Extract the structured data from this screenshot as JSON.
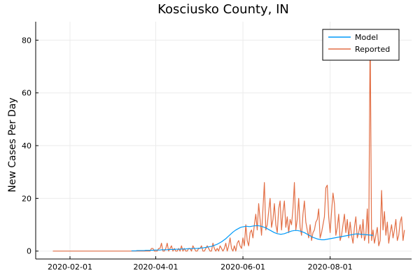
{
  "chart_data": {
    "type": "line",
    "title": "Kosciusko County, IN",
    "xlabel": "",
    "ylabel": "New Cases Per Day",
    "x_start": "2020-01-20",
    "xlim": [
      "2020-01-08",
      "2020-09-27"
    ],
    "ylim": [
      -3,
      87
    ],
    "grid": true,
    "legend_position": "top-right",
    "x_ticks": [
      {
        "date": "2020-02-01",
        "label": "2020-02-01"
      },
      {
        "date": "2020-04-01",
        "label": "2020-04-01"
      },
      {
        "date": "2020-06-01",
        "label": "2020-06-01"
      },
      {
        "date": "2020-08-01",
        "label": "2020-08-01"
      }
    ],
    "y_ticks": [
      0,
      20,
      40,
      60,
      80
    ],
    "series": [
      {
        "name": "Model",
        "color": "#009af9",
        "start_date": "2020-03-15",
        "values": [
          0.1,
          0.1,
          0.1,
          0.1,
          0.2,
          0.2,
          0.2,
          0.2,
          0.2,
          0.2,
          0.3,
          0.3,
          0.3,
          0.3,
          0.3,
          0.3,
          0.4,
          0.4,
          0.4,
          0.4,
          0.4,
          0.5,
          0.5,
          0.5,
          0.5,
          0.5,
          0.6,
          0.6,
          0.6,
          0.6,
          0.6,
          0.7,
          0.7,
          0.7,
          0.7,
          0.8,
          0.8,
          0.8,
          0.8,
          0.9,
          0.9,
          0.9,
          0.9,
          1,
          1,
          1,
          1,
          1.1,
          1.1,
          1.2,
          1.2,
          1.3,
          1.4,
          1.5,
          1.6,
          1.7,
          1.8,
          2.0,
          2.2,
          2.4,
          2.6,
          2.9,
          3.2,
          3.5,
          3.9,
          4.3,
          4.7,
          5.2,
          5.7,
          6.2,
          6.7,
          7.2,
          7.6,
          8.0,
          8.3,
          8.6,
          8.9,
          9.1,
          9.2,
          9.3,
          9.4,
          9.4,
          9.3,
          9.3,
          9.4,
          9.5,
          9.6,
          9.6,
          9.7,
          9.6,
          9.5,
          9.4,
          9.2,
          9.0,
          8.8,
          8.5,
          8.2,
          7.9,
          7.6,
          7.3,
          7.0,
          6.8,
          6.6,
          6.5,
          6.4,
          6.4,
          6.5,
          6.6,
          6.8,
          7.0,
          7.2,
          7.4,
          7.6,
          7.7,
          7.8,
          7.8,
          7.8,
          7.7,
          7.6,
          7.4,
          7.2,
          7.0,
          6.7,
          6.4,
          6.1,
          5.8,
          5.5,
          5.2,
          5.0,
          4.8,
          4.6,
          4.5,
          4.4,
          4.3,
          4.3,
          4.3,
          4.4,
          4.5,
          4.6,
          4.7,
          4.8,
          4.9,
          5.0,
          5.1,
          5.2,
          5.3,
          5.4,
          5.5,
          5.6,
          5.7,
          5.8,
          5.9,
          6.0,
          6.1,
          6.2,
          6.3,
          6.4,
          6.5,
          6.5,
          6.5,
          6.4,
          6.4,
          6.3,
          6.3,
          6.2,
          6.2,
          6.1,
          6.1,
          6.0,
          6.0
        ]
      },
      {
        "name": "Reported",
        "color": "#e26f46",
        "start_date": "2020-01-20",
        "values": [
          0,
          0,
          0,
          0,
          0,
          0,
          0,
          0,
          0,
          0,
          0,
          0,
          0,
          0,
          0,
          0,
          0,
          0,
          0,
          0,
          0,
          0,
          0,
          0,
          0,
          0,
          0,
          0,
          0,
          0,
          0,
          0,
          0,
          0,
          0,
          0,
          0,
          0,
          0,
          0,
          0,
          0,
          0,
          0,
          0,
          0,
          0,
          0,
          0,
          0,
          0,
          0,
          0,
          0,
          0,
          0,
          0,
          0,
          0,
          0,
          0,
          0,
          0,
          0,
          0,
          0,
          0,
          0,
          0,
          1,
          1,
          0,
          0,
          0,
          1,
          1,
          3,
          0,
          0,
          1,
          3,
          0,
          1,
          2,
          0,
          1,
          0,
          0,
          1,
          0,
          2,
          0,
          1,
          0,
          0,
          1,
          1,
          0,
          2,
          1,
          0,
          0,
          1,
          1,
          2,
          0,
          0,
          1,
          2,
          1,
          0,
          0,
          3,
          1,
          0,
          1,
          0,
          2,
          1,
          0,
          1,
          3,
          0,
          2,
          5,
          1,
          0,
          2,
          0,
          3,
          4,
          2,
          1,
          5,
          2,
          10,
          4,
          2,
          7,
          8,
          5,
          10,
          14,
          8,
          18,
          12,
          6,
          16,
          26,
          8,
          10,
          15,
          20,
          9,
          12,
          18,
          10,
          7,
          16,
          19,
          8,
          15,
          19,
          9,
          13,
          7,
          12,
          10,
          16,
          26,
          8,
          12,
          20,
          9,
          6,
          14,
          19,
          11,
          8,
          5,
          10,
          4,
          7,
          8,
          11,
          12,
          16,
          5,
          7,
          10,
          13,
          24,
          25,
          13,
          7,
          15,
          22,
          18,
          6,
          9,
          14,
          4,
          6,
          10,
          14,
          7,
          12,
          5,
          11,
          6,
          3,
          9,
          13,
          5,
          7,
          10,
          5,
          12,
          4,
          6,
          16,
          3,
          84,
          4,
          8,
          3,
          6,
          9,
          2,
          4,
          23,
          8,
          15,
          6,
          11,
          3,
          7,
          10,
          5,
          8,
          12,
          4,
          6,
          11,
          13,
          4,
          8
        ]
      }
    ]
  }
}
